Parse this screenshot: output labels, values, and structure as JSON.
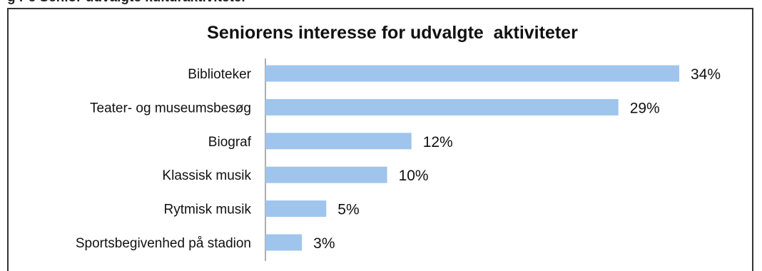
{
  "caption_fragment": "g  r  e  Senior  udvalgte  kulturaktiviteter",
  "chart_data": {
    "type": "bar",
    "orientation": "horizontal",
    "title": "Seniorens interesse for udvalgte  aktiviteter",
    "categories": [
      "Biblioteker",
      "Teater- og museumsbesøg",
      "Biograf",
      "Klassisk musik",
      "Rytmisk musik",
      "Sportsbegivenhed på stadion"
    ],
    "values": [
      34,
      29,
      12,
      10,
      5,
      3
    ],
    "value_labels": [
      "34%",
      "29%",
      "12%",
      "10%",
      "5%",
      "3%"
    ],
    "unit": "%",
    "xlim": [
      0,
      34
    ],
    "grid": false,
    "legend": "none",
    "bar_color": "#9fc5ec"
  }
}
